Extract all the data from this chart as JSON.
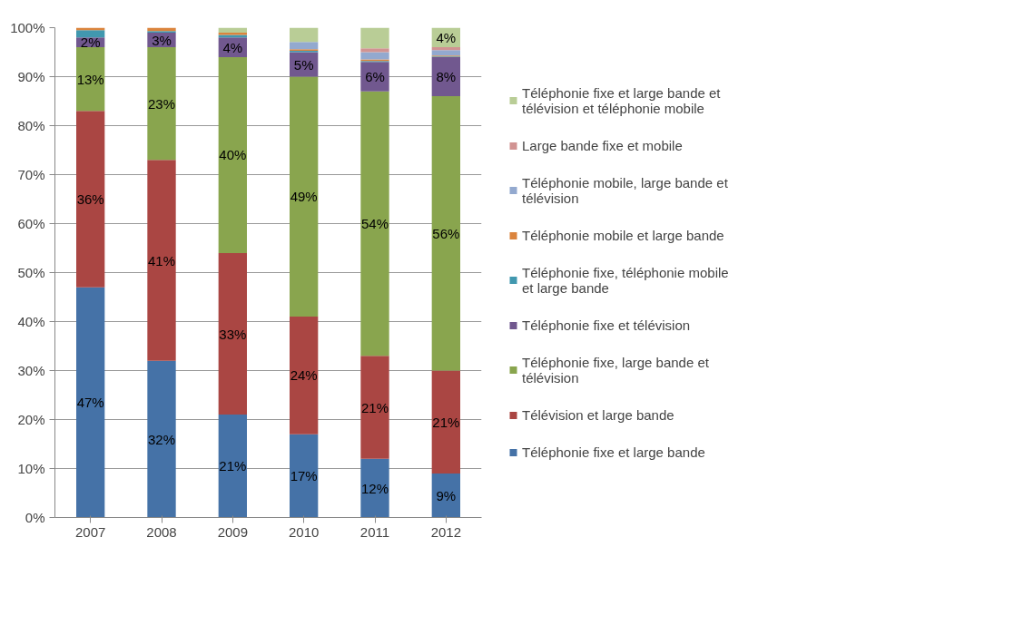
{
  "chart_data": {
    "type": "bar",
    "stacked": true,
    "categories": [
      "2007",
      "2008",
      "2009",
      "2010",
      "2011",
      "2012"
    ],
    "ylim": [
      0,
      100
    ],
    "yticks": [
      {
        "value": 0,
        "label": "0%"
      },
      {
        "value": 10,
        "label": "10%"
      },
      {
        "value": 20,
        "label": "20%"
      },
      {
        "value": 30,
        "label": "30%"
      },
      {
        "value": 40,
        "label": "40%"
      },
      {
        "value": 50,
        "label": "50%"
      },
      {
        "value": 60,
        "label": "60%"
      },
      {
        "value": 70,
        "label": "70%"
      },
      {
        "value": 80,
        "label": "80%"
      },
      {
        "value": 90,
        "label": "90%"
      },
      {
        "value": 100,
        "label": "100%"
      }
    ],
    "grid": "y",
    "legend": "right",
    "series": [
      {
        "name": "Téléphonie fixe et large bande",
        "color": "#4572a7",
        "values": [
          47,
          32,
          21,
          17,
          12,
          9
        ],
        "value_labels": [
          "47%",
          "32%",
          "21%",
          "17%",
          "12%",
          "9%"
        ]
      },
      {
        "name": "Télévision et large bande",
        "color": "#aa4643",
        "values": [
          36,
          41,
          33,
          24,
          21,
          21
        ],
        "value_labels": [
          "36%",
          "41%",
          "33%",
          "24%",
          "21%",
          "21%"
        ]
      },
      {
        "name": "Téléphonie fixe, large bande et télévision",
        "color": "#89a54e",
        "values": [
          13,
          23,
          40,
          49,
          54,
          56
        ],
        "value_labels": [
          "13%",
          "23%",
          "40%",
          "49%",
          "54%",
          "56%"
        ]
      },
      {
        "name": "Téléphonie fixe et télévision",
        "color": "#71588f",
        "values": [
          2,
          3,
          4,
          5,
          6,
          8
        ],
        "value_labels": [
          "2%",
          "3%",
          "4%",
          "5%",
          "6%",
          "8%"
        ]
      },
      {
        "name": "Téléphonie fixe, téléphonie mobile et large bande",
        "color": "#4198af",
        "values": [
          1.5,
          0.3,
          0.5,
          0.3,
          0.2,
          0.1
        ],
        "value_labels": [
          null,
          null,
          null,
          null,
          null,
          null
        ]
      },
      {
        "name": "Téléphonie mobile et large bande",
        "color": "#db843d",
        "values": [
          0.5,
          0.7,
          0.5,
          0.3,
          0.3,
          0.2
        ],
        "value_labels": [
          null,
          null,
          null,
          null,
          null,
          null
        ]
      },
      {
        "name": "Téléphonie mobile, large bande et télévision",
        "color": "#93a9cf",
        "values": [
          0,
          0,
          0,
          1.5,
          1.5,
          1.1
        ],
        "value_labels": [
          null,
          null,
          null,
          null,
          null,
          null
        ]
      },
      {
        "name": "Large bande fixe et mobile",
        "color": "#d19392",
        "values": [
          0,
          0,
          0,
          0,
          0.8,
          0.6
        ],
        "value_labels": [
          null,
          null,
          null,
          null,
          null,
          null
        ]
      },
      {
        "name": "Téléphonie fixe et large bande et télévision et téléphonie mobile",
        "color": "#b9cd96",
        "values": [
          0,
          0,
          1,
          2.9,
          4.2,
          4
        ],
        "value_labels": [
          null,
          null,
          null,
          null,
          null,
          "4%"
        ]
      }
    ]
  }
}
